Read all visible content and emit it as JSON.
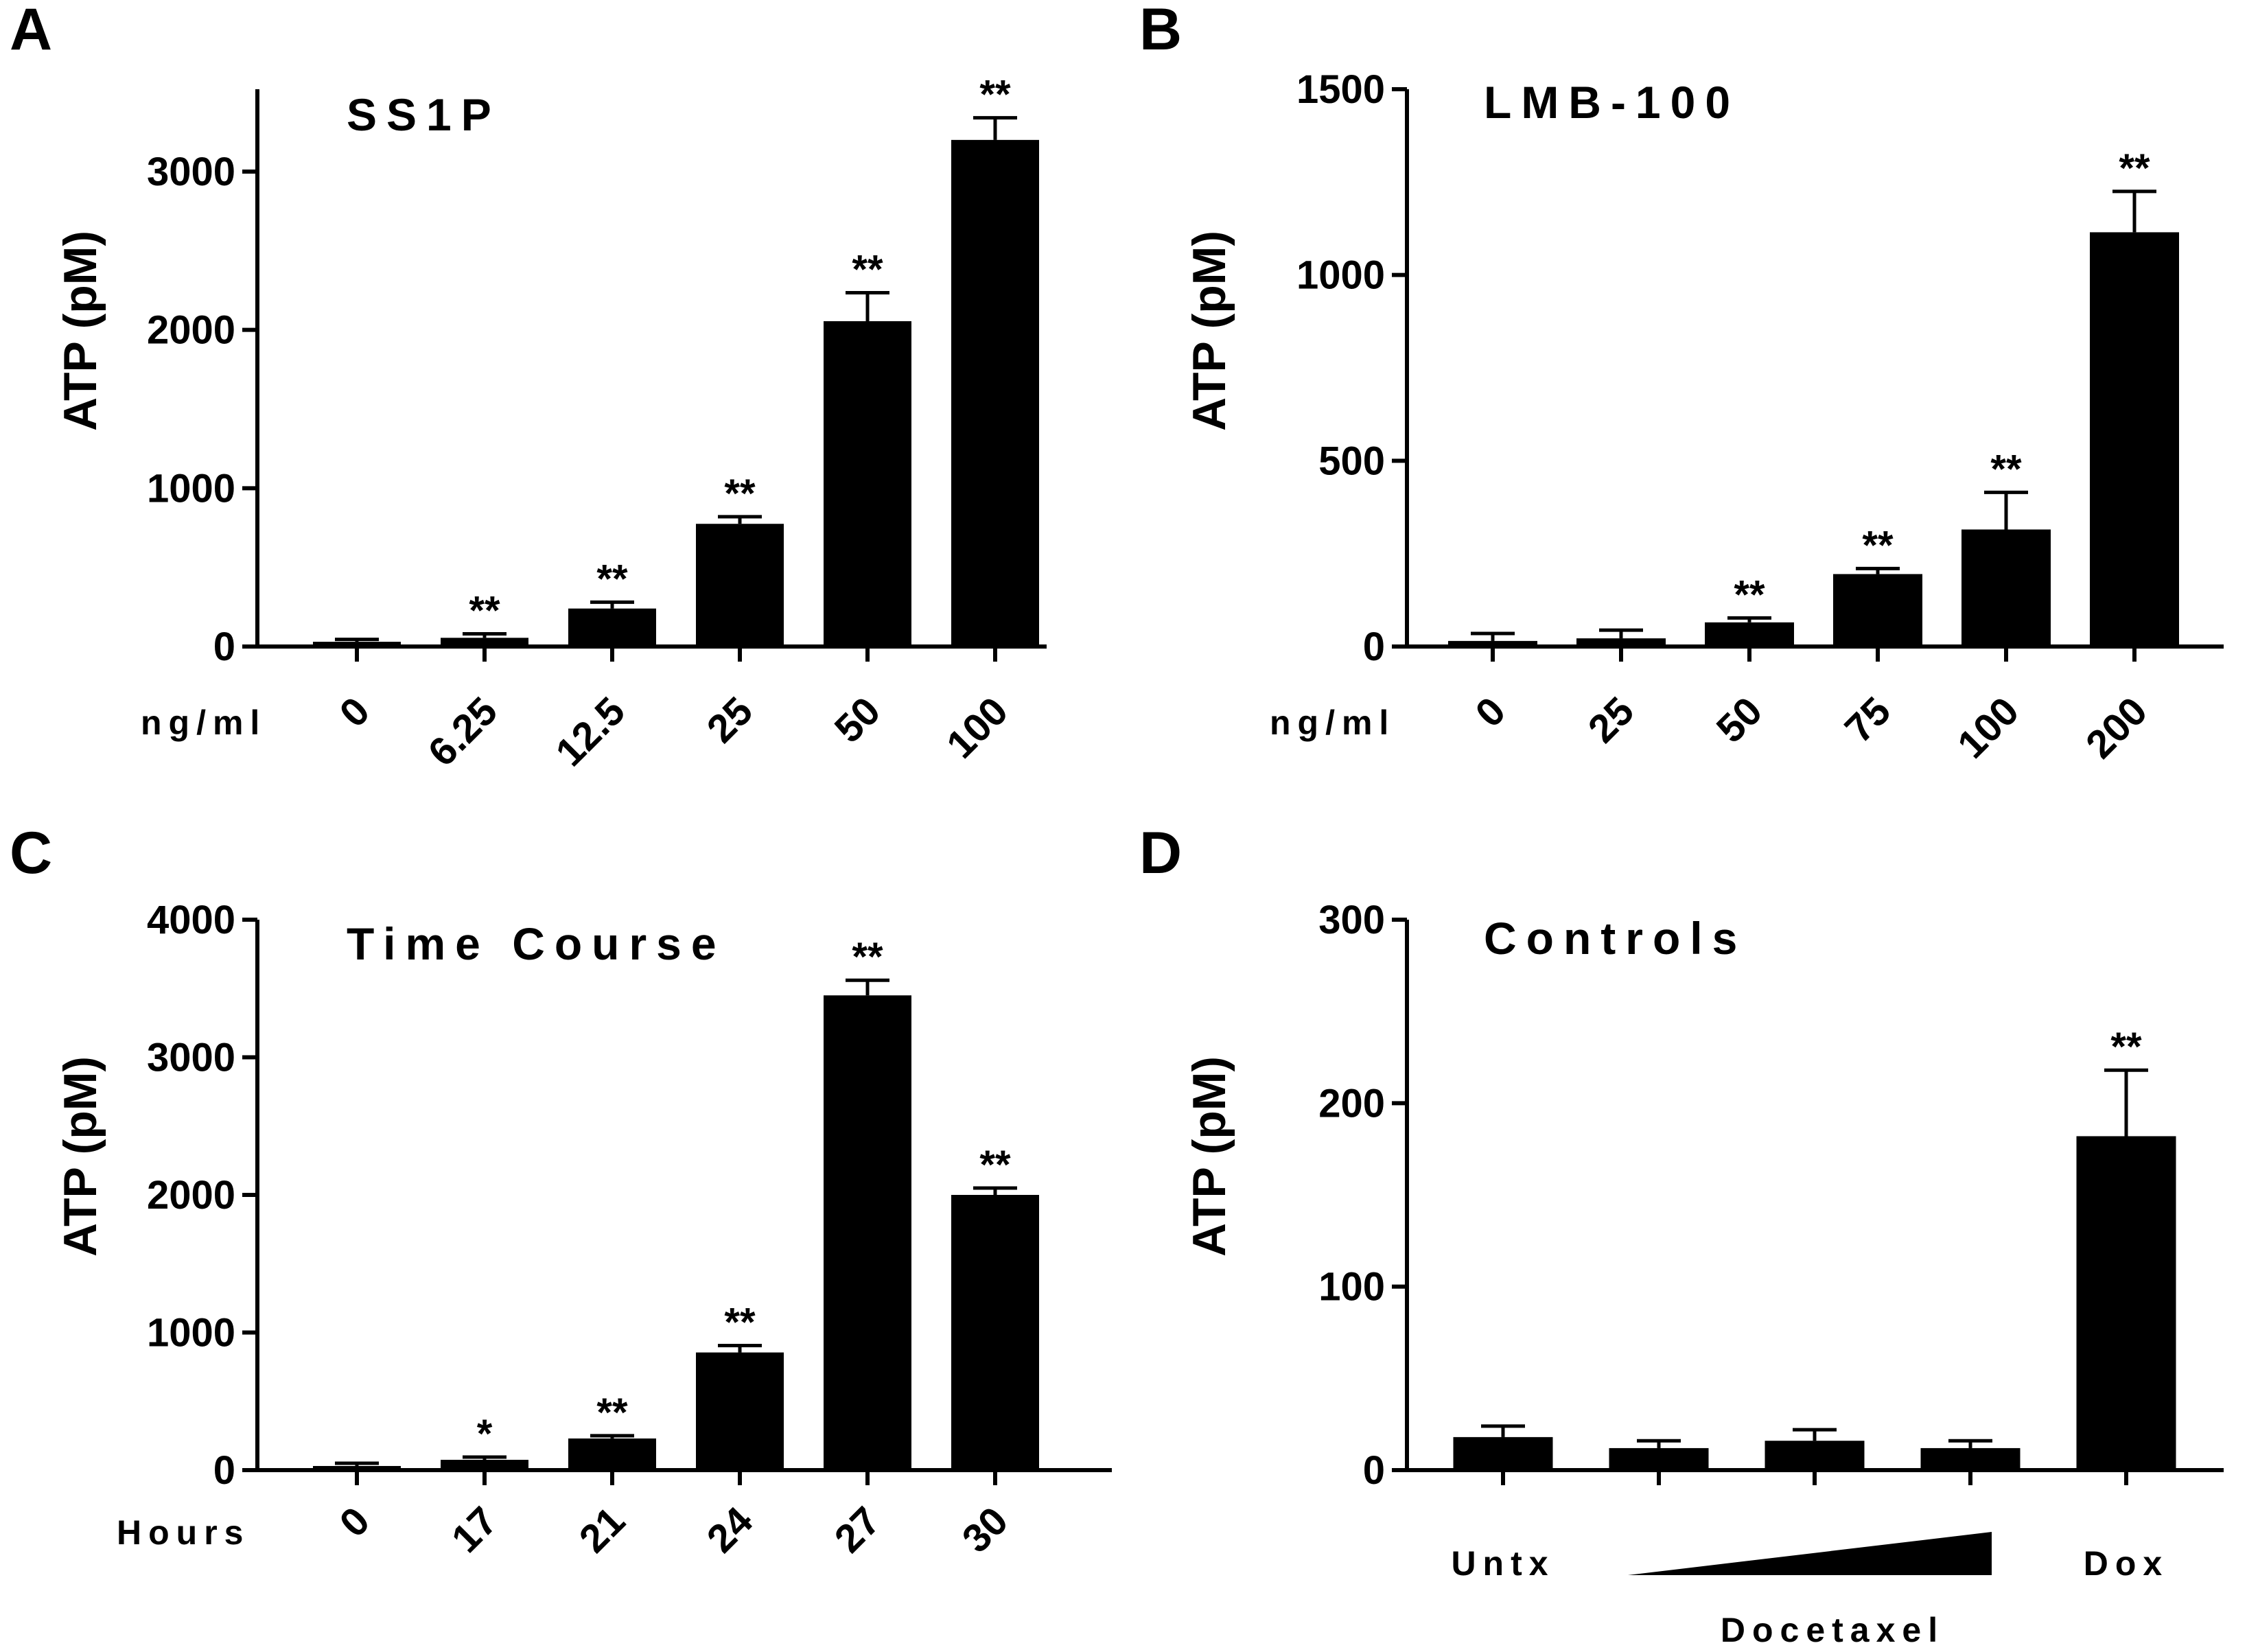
{
  "chart_data": [
    {
      "panel": "A",
      "type": "bar",
      "title": "SS1P",
      "ylabel": "ATP (pM)",
      "xlabel": "ng/ml",
      "ylim": [
        0,
        3500
      ],
      "yticks": [
        "0",
        "1000",
        "2000",
        "3000"
      ],
      "categories": [
        "0",
        "6.25",
        "12.5",
        "25",
        "50",
        "100"
      ],
      "values": [
        30,
        55,
        240,
        775,
        2055,
        3200
      ],
      "errors": [
        15,
        25,
        40,
        45,
        180,
        140
      ],
      "significance": [
        "",
        "**",
        "**",
        "**",
        "**",
        "**"
      ]
    },
    {
      "panel": "B",
      "type": "bar",
      "title": "LMB-100",
      "ylabel": "ATP (pM)",
      "xlabel": "ng/ml",
      "ylim": [
        0,
        1500
      ],
      "yticks": [
        "0",
        "500",
        "1000",
        "1500"
      ],
      "categories": [
        "0",
        "25",
        "50",
        "75",
        "100",
        "200"
      ],
      "values": [
        15,
        22,
        65,
        195,
        315,
        1115
      ],
      "errors": [
        20,
        22,
        12,
        15,
        100,
        110
      ],
      "significance": [
        "",
        "",
        "**",
        "**",
        "**",
        "**"
      ]
    },
    {
      "panel": "C",
      "type": "bar",
      "title": "Time Course",
      "ylabel": "ATP (pM)",
      "xlabel": "Hours",
      "ylim": [
        0,
        4000
      ],
      "yticks": [
        "0",
        "1000",
        "2000",
        "3000",
        "4000"
      ],
      "categories": [
        "0",
        "17",
        "21",
        "24",
        "27",
        "30"
      ],
      "values": [
        30,
        75,
        230,
        855,
        3450,
        2000
      ],
      "errors": [
        20,
        20,
        20,
        50,
        110,
        50
      ],
      "significance": [
        "",
        "*",
        "**",
        "**",
        "**",
        "**"
      ]
    },
    {
      "panel": "D",
      "type": "bar",
      "title": "Controls",
      "ylabel": "ATP (pM)",
      "ylim": [
        0,
        300
      ],
      "yticks": [
        "0",
        "100",
        "200",
        "300"
      ],
      "categories": [
        "Untx",
        "",
        "",
        "",
        "Dox"
      ],
      "group_label": "Docetaxel",
      "values": [
        18,
        12,
        16,
        12,
        182
      ],
      "errors": [
        6,
        4,
        6,
        4,
        36
      ],
      "significance": [
        "",
        "",
        "",
        "",
        "**"
      ]
    }
  ]
}
